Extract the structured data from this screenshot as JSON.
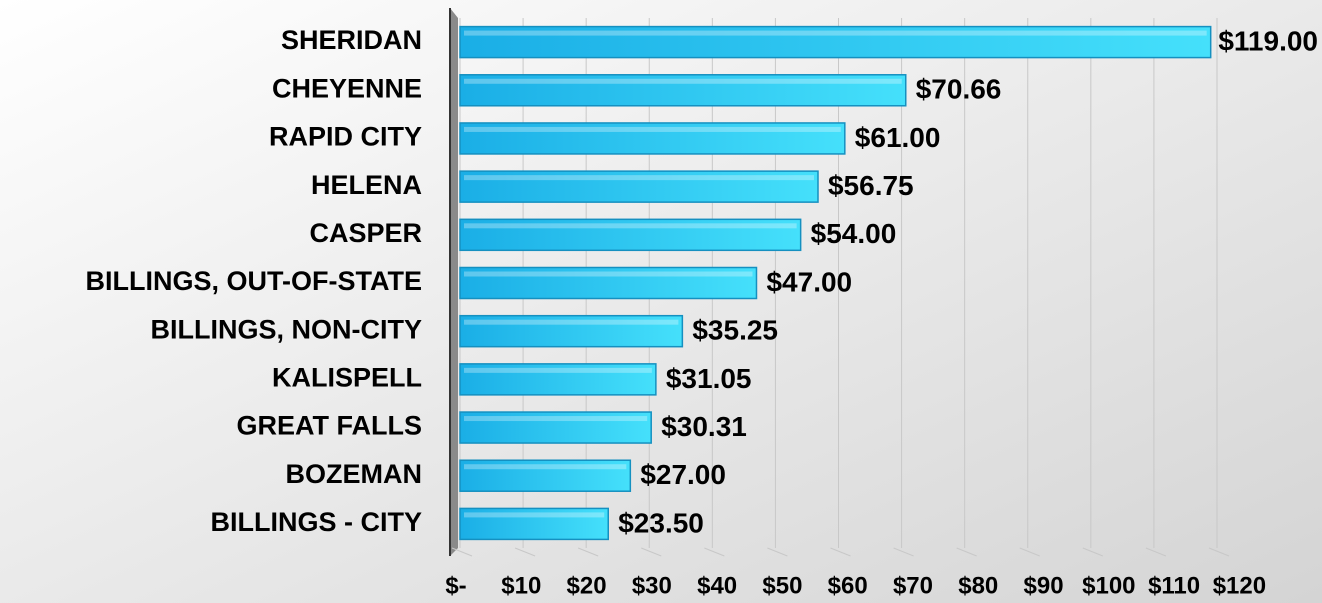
{
  "chart_data": {
    "type": "bar",
    "orientation": "horizontal",
    "categories": [
      "SHERIDAN",
      "CHEYENNE",
      "RAPID CITY",
      "HELENA",
      "CASPER",
      "BILLINGS, OUT-OF-STATE",
      "BILLINGS, NON-CITY",
      "KALISPELL",
      "GREAT FALLS",
      "BOZEMAN",
      "BILLINGS - CITY"
    ],
    "values": [
      119,
      70.66,
      61,
      56.75,
      54,
      47,
      35.25,
      31.05,
      30.31,
      27,
      23.5
    ],
    "value_labels": [
      "$119.00",
      "$70.66",
      "$61.00",
      "$56.75",
      "$54.00",
      "$47.00",
      "$35.25",
      "$31.05",
      "$30.31",
      "$27.00",
      "$23.50"
    ],
    "color": "#2ec4f4",
    "xlim": [
      0,
      120
    ],
    "xticks": [
      {
        "value": 0,
        "label": "$-"
      },
      {
        "value": 10,
        "label": "$10"
      },
      {
        "value": 20,
        "label": "$20"
      },
      {
        "value": 30,
        "label": "$30"
      },
      {
        "value": 40,
        "label": "$40"
      },
      {
        "value": 50,
        "label": "$50"
      },
      {
        "value": 60,
        "label": "$60"
      },
      {
        "value": 70,
        "label": "$70"
      },
      {
        "value": 80,
        "label": "$80"
      },
      {
        "value": 90,
        "label": "$90"
      },
      {
        "value": 100,
        "label": "$100"
      },
      {
        "value": 110,
        "label": "$110"
      },
      {
        "value": 120,
        "label": "$120"
      }
    ],
    "grid": true
  }
}
